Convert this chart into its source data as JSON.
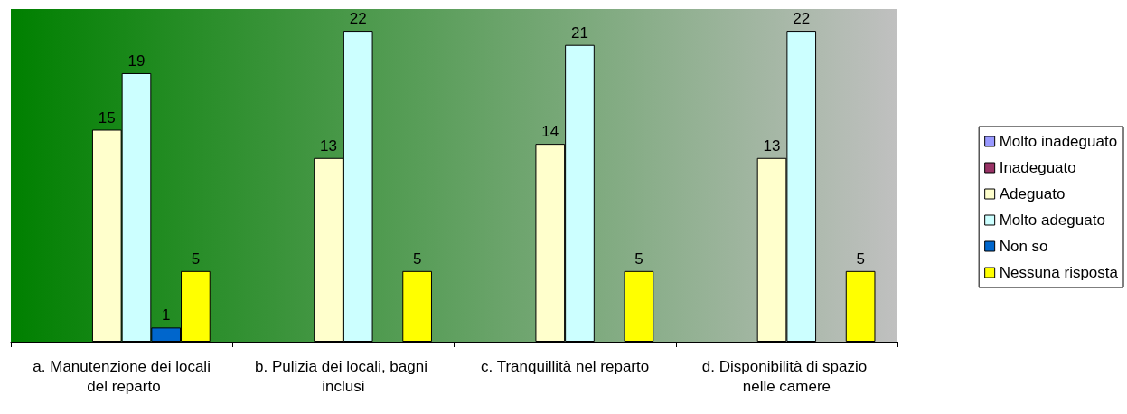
{
  "chart_data": {
    "type": "bar",
    "categories": [
      "a. Manutenzione dei locali del reparto",
      "b. Pulizia dei locali, bagni inclusi",
      "c. Tranquillità nel reparto",
      "d. Disponibilità di spazio nelle camere"
    ],
    "series": [
      {
        "name": "Molto inadeguato",
        "color": "#9999ff",
        "values": [
          null,
          null,
          null,
          null
        ]
      },
      {
        "name": "Inadeguato",
        "color": "#993366",
        "values": [
          null,
          null,
          null,
          null
        ]
      },
      {
        "name": "Adeguato",
        "color": "#ffffcc",
        "values": [
          15,
          13,
          14,
          13
        ]
      },
      {
        "name": "Molto adeguato",
        "color": "#ccffff",
        "values": [
          19,
          22,
          21,
          22
        ]
      },
      {
        "name": "Non so",
        "color": "#0066cc",
        "values": [
          1,
          null,
          null,
          null
        ]
      },
      {
        "name": "Nessuna risposta",
        "color": "#ffff00",
        "values": [
          5,
          5,
          5,
          5
        ]
      }
    ],
    "data_labels": true,
    "legend": "right",
    "grid": false
  }
}
